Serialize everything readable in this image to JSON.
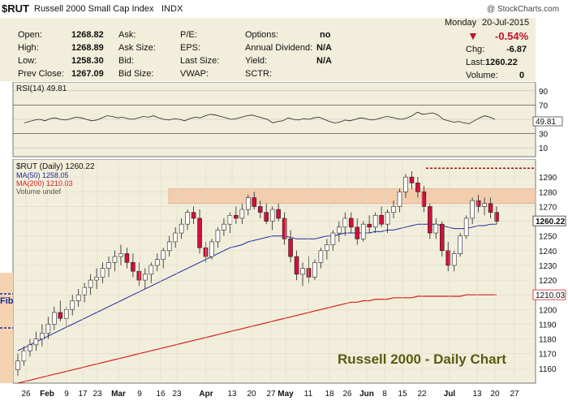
{
  "header": {
    "symbol": "$RUT",
    "name": "Russell 2000 Small Cap Index",
    "exchange": "INDX",
    "watermark": "@ StockCharts.com"
  },
  "quote": {
    "open_label": "Open:",
    "open": "1268.82",
    "high_label": "High:",
    "high": "1268.89",
    "low_label": "Low:",
    "low": "1258.30",
    "prev_label": "Prev Close:",
    "prev": "1267.09",
    "ask_label": "Ask:",
    "asksize_label": "Ask Size:",
    "bid_label": "Bid:",
    "bidsize_label": "Bid Size:",
    "pe_label": "P/E:",
    "eps_label": "EPS:",
    "lastsize_label": "Last Size:",
    "vwap_label": "VWAP:",
    "options_label": "Options:",
    "options": "no",
    "dividend_label": "Annual Dividend:",
    "dividend": "N/A",
    "yield_label": "Yield:",
    "yield": "N/A",
    "sctr_label": "SCTR:",
    "day": "Monday",
    "date": "20-Jul-2015",
    "pct": "-0.54%",
    "chg_label": "Chg:",
    "chg": "-6.87",
    "last_label": "Last:",
    "last": "1260.22",
    "volume_label": "Volume:",
    "volume": "0"
  },
  "colors": {
    "up": "#ffffff",
    "down": "#d0103a",
    "ma50": "#1a2a9c",
    "ma200": "#d42020",
    "panel": "#f2eedc",
    "band": "#f2c9a8"
  },
  "chart_data": [
    {
      "type": "line",
      "title": "RSI(14) 49.81",
      "ylim": [
        0,
        100
      ],
      "y_ticks": [
        10,
        30,
        50,
        70,
        90
      ],
      "current_label": "49.81",
      "series": [
        {
          "name": "RSI(14)",
          "values": [
            45,
            47,
            49,
            50,
            48,
            51,
            52,
            50,
            49,
            51,
            53,
            52,
            50,
            48,
            49,
            52,
            55,
            54,
            52,
            53,
            51,
            50,
            52,
            54,
            53,
            55,
            52,
            50,
            49,
            51,
            50,
            48,
            51,
            53,
            52,
            55,
            57,
            56,
            54,
            52,
            50,
            51,
            53,
            55,
            56,
            54,
            52,
            50,
            45,
            47,
            48,
            52,
            50,
            49,
            51,
            50,
            52,
            53,
            50,
            47,
            45,
            46,
            49,
            48,
            50,
            52,
            51,
            49,
            50,
            52,
            54,
            53,
            51,
            50,
            52,
            55,
            60,
            57,
            58,
            59,
            56,
            50,
            48,
            46,
            47,
            45,
            44,
            48,
            52,
            55,
            53,
            50
          ]
        }
      ]
    },
    {
      "type": "line",
      "title": "$RUT (Daily) 1260.22",
      "legend": [
        "$RUT (Daily) 1260.22",
        "MA(50) 1258.05",
        "MA(200) 1210.03",
        "Volume undef"
      ],
      "ylim": [
        1150,
        1300
      ],
      "y_ticks": [
        1160,
        1170,
        1180,
        1190,
        1200,
        1210,
        1220,
        1230,
        1240,
        1250,
        1260,
        1270,
        1280,
        1290
      ],
      "x_ticks": [
        "26",
        "Feb",
        "9",
        "17",
        "23",
        "Mar",
        "9",
        "16",
        "23",
        "Apr",
        "13",
        "20",
        "27",
        "May",
        "11",
        "18",
        "26",
        "Jun",
        "8",
        "15",
        "22",
        "Jul",
        "13",
        "20",
        "27"
      ],
      "price_label": "1260.22",
      "ma200_label": "1210.03",
      "annotation": "Russell 2000 - Daily Chart",
      "side_label": "Fib",
      "ohlc": [
        [
          1159,
          1170,
          1155,
          1165
        ],
        [
          1165,
          1175,
          1162,
          1172
        ],
        [
          1172,
          1180,
          1168,
          1176
        ],
        [
          1176,
          1185,
          1172,
          1180
        ],
        [
          1180,
          1190,
          1175,
          1184
        ],
        [
          1184,
          1195,
          1180,
          1190
        ],
        [
          1190,
          1202,
          1186,
          1198
        ],
        [
          1198,
          1206,
          1192,
          1194
        ],
        [
          1194,
          1202,
          1188,
          1200
        ],
        [
          1200,
          1210,
          1196,
          1206
        ],
        [
          1206,
          1214,
          1202,
          1210
        ],
        [
          1210,
          1218,
          1205,
          1215
        ],
        [
          1215,
          1224,
          1210,
          1220
        ],
        [
          1220,
          1228,
          1214,
          1222
        ],
        [
          1222,
          1232,
          1218,
          1228
        ],
        [
          1228,
          1236,
          1222,
          1232
        ],
        [
          1232,
          1240,
          1226,
          1236
        ],
        [
          1236,
          1244,
          1230,
          1238
        ],
        [
          1238,
          1242,
          1228,
          1232
        ],
        [
          1232,
          1238,
          1222,
          1226
        ],
        [
          1226,
          1232,
          1216,
          1220
        ],
        [
          1220,
          1228,
          1214,
          1224
        ],
        [
          1224,
          1232,
          1218,
          1230
        ],
        [
          1230,
          1238,
          1226,
          1234
        ],
        [
          1234,
          1242,
          1228,
          1240
        ],
        [
          1240,
          1250,
          1236,
          1246
        ],
        [
          1246,
          1256,
          1242,
          1252
        ],
        [
          1252,
          1262,
          1248,
          1258
        ],
        [
          1258,
          1268,
          1254,
          1266
        ],
        [
          1266,
          1270,
          1258,
          1262
        ],
        [
          1262,
          1268,
          1238,
          1242
        ],
        [
          1242,
          1246,
          1232,
          1236
        ],
        [
          1236,
          1248,
          1234,
          1246
        ],
        [
          1246,
          1256,
          1242,
          1254
        ],
        [
          1254,
          1262,
          1250,
          1258
        ],
        [
          1258,
          1266,
          1252,
          1264
        ],
        [
          1264,
          1270,
          1258,
          1262
        ],
        [
          1262,
          1272,
          1258,
          1268
        ],
        [
          1268,
          1278,
          1264,
          1276
        ],
        [
          1276,
          1280,
          1268,
          1270
        ],
        [
          1270,
          1274,
          1262,
          1266
        ],
        [
          1266,
          1272,
          1258,
          1260
        ],
        [
          1260,
          1270,
          1254,
          1268
        ],
        [
          1268,
          1272,
          1260,
          1262
        ],
        [
          1262,
          1266,
          1244,
          1248
        ],
        [
          1248,
          1254,
          1232,
          1236
        ],
        [
          1236,
          1240,
          1220,
          1224
        ],
        [
          1224,
          1232,
          1216,
          1228
        ],
        [
          1228,
          1236,
          1218,
          1222
        ],
        [
          1222,
          1234,
          1220,
          1232
        ],
        [
          1232,
          1242,
          1228,
          1240
        ],
        [
          1240,
          1248,
          1234,
          1244
        ],
        [
          1244,
          1254,
          1240,
          1252
        ],
        [
          1252,
          1260,
          1246,
          1256
        ],
        [
          1256,
          1266,
          1250,
          1262
        ],
        [
          1262,
          1266,
          1252,
          1256
        ],
        [
          1256,
          1262,
          1244,
          1248
        ],
        [
          1248,
          1260,
          1246,
          1258
        ],
        [
          1258,
          1264,
          1252,
          1256
        ],
        [
          1256,
          1266,
          1252,
          1264
        ],
        [
          1264,
          1270,
          1256,
          1258
        ],
        [
          1258,
          1268,
          1252,
          1266
        ],
        [
          1266,
          1274,
          1262,
          1270
        ],
        [
          1270,
          1282,
          1266,
          1280
        ],
        [
          1280,
          1292,
          1276,
          1290
        ],
        [
          1290,
          1294,
          1282,
          1286
        ],
        [
          1286,
          1290,
          1276,
          1280
        ],
        [
          1280,
          1284,
          1266,
          1270
        ],
        [
          1270,
          1272,
          1248,
          1252
        ],
        [
          1252,
          1262,
          1248,
          1258
        ],
        [
          1258,
          1260,
          1236,
          1240
        ],
        [
          1240,
          1246,
          1226,
          1230
        ],
        [
          1230,
          1240,
          1226,
          1238
        ],
        [
          1238,
          1252,
          1236,
          1250
        ],
        [
          1250,
          1264,
          1248,
          1262
        ],
        [
          1262,
          1276,
          1258,
          1274
        ],
        [
          1274,
          1278,
          1266,
          1270
        ],
        [
          1270,
          1276,
          1264,
          1272
        ],
        [
          1272,
          1276,
          1262,
          1266
        ],
        [
          1266,
          1270,
          1258,
          1260
        ]
      ],
      "ma50": [
        1172,
        1174,
        1176,
        1178,
        1180,
        1182,
        1184,
        1186,
        1188,
        1190,
        1192,
        1194,
        1196,
        1198,
        1200,
        1202,
        1204,
        1206,
        1208,
        1210,
        1212,
        1214,
        1216,
        1218,
        1220,
        1222,
        1224,
        1226,
        1228,
        1230,
        1232,
        1234,
        1236,
        1238,
        1240,
        1242,
        1243,
        1244,
        1246,
        1247,
        1248,
        1249,
        1250,
        1250,
        1250,
        1249,
        1248,
        1248,
        1248,
        1248,
        1249,
        1250,
        1250,
        1251,
        1252,
        1252,
        1252,
        1252,
        1252,
        1253,
        1253,
        1254,
        1254,
        1255,
        1256,
        1257,
        1258,
        1258,
        1258,
        1258,
        1257,
        1256,
        1255,
        1255,
        1255,
        1256,
        1257,
        1257,
        1258,
        1258
      ],
      "ma200": [
        1150,
        1151,
        1152,
        1153,
        1154,
        1155,
        1156,
        1157,
        1158,
        1159,
        1160,
        1161,
        1162,
        1163,
        1164,
        1165,
        1166,
        1167,
        1168,
        1169,
        1170,
        1171,
        1172,
        1173,
        1174,
        1175,
        1176,
        1177,
        1178,
        1179,
        1180,
        1181,
        1182,
        1183,
        1184,
        1185,
        1186,
        1187,
        1188,
        1189,
        1190,
        1191,
        1192,
        1193,
        1194,
        1195,
        1196,
        1197,
        1198,
        1199,
        1200,
        1201,
        1202,
        1203,
        1204,
        1205,
        1205,
        1206,
        1206,
        1207,
        1207,
        1207,
        1208,
        1208,
        1208,
        1208,
        1209,
        1209,
        1209,
        1209,
        1209,
        1209,
        1209,
        1209,
        1210,
        1210,
        1210,
        1210,
        1210,
        1210
      ],
      "resistance_band": [
        1272,
        1282
      ],
      "resistance_line": 1296
    }
  ]
}
